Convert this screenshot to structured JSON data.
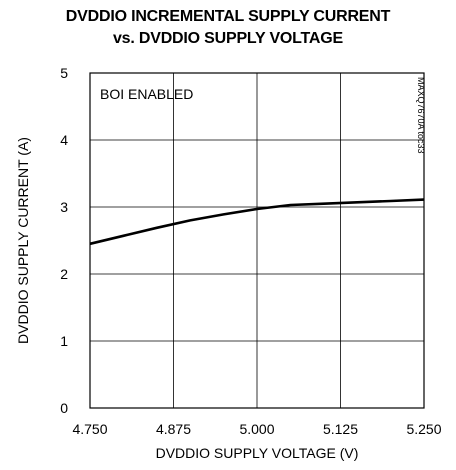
{
  "chart_data": {
    "type": "line",
    "title": "DVDDIO INCREMENTAL SUPPLY CURRENT",
    "subtitle": "vs. DVDDIO SUPPLY VOLTAGE",
    "xlabel": "DVDDIO SUPPLY VOLTAGE (V)",
    "ylabel": "DVDDIO SUPPLY CURRENT (A)",
    "xlim": [
      4.75,
      5.25
    ],
    "ylim": [
      0,
      5
    ],
    "xticks": [
      "4.750",
      "4.875",
      "5.000",
      "5.125",
      "5.250"
    ],
    "yticks": [
      "0",
      "1",
      "2",
      "3",
      "4",
      "5"
    ],
    "grid": true,
    "annotation": "BOI ENABLED",
    "figure_code": "MAXQ7670A toc33",
    "series": [
      {
        "x": [
          4.75,
          4.8,
          4.85,
          4.9,
          4.95,
          5.0,
          5.05,
          5.1,
          5.15,
          5.2,
          5.25
        ],
        "values": [
          2.45,
          2.57,
          2.69,
          2.8,
          2.89,
          2.97,
          3.03,
          3.05,
          3.07,
          3.09,
          3.11
        ]
      }
    ]
  }
}
